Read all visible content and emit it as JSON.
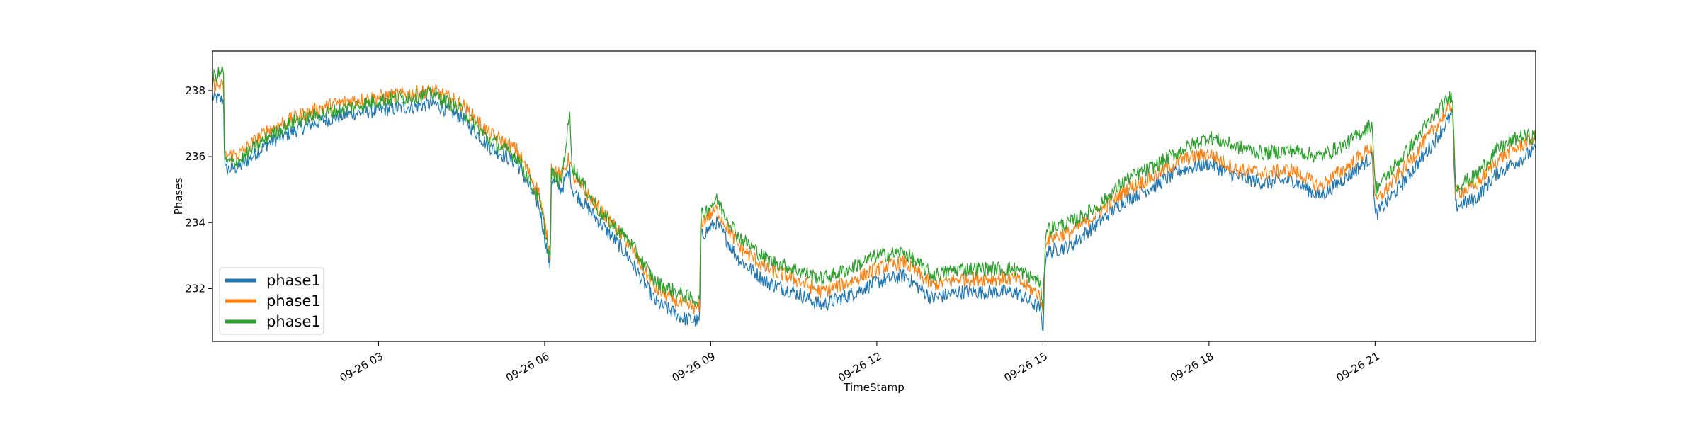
{
  "chart_data": {
    "type": "line",
    "title": "",
    "xlabel": "TimeStamp",
    "ylabel": "Phases",
    "x_unit": "hours since 09-26 00:00",
    "xlim": [
      0,
      23.9
    ],
    "ylim": [
      230.4,
      239.2
    ],
    "x_ticks": [
      {
        "value": 3,
        "label": "09-26 03"
      },
      {
        "value": 6,
        "label": "09-26 06"
      },
      {
        "value": 9,
        "label": "09-26 09"
      },
      {
        "value": 12,
        "label": "09-26 12"
      },
      {
        "value": 15,
        "label": "09-26 15"
      },
      {
        "value": 18,
        "label": "09-26 18"
      },
      {
        "value": 21,
        "label": "09-26 21"
      }
    ],
    "y_ticks": [
      232,
      234,
      236,
      238
    ],
    "grid": false,
    "legend": {
      "placement": "lower-left"
    },
    "series": [
      {
        "name": "phase1",
        "color": "#1f77b4",
        "x": [
          0,
          0.2,
          0.22,
          0.5,
          1,
          1.5,
          2,
          2.5,
          3,
          3.5,
          4,
          4.5,
          5,
          5.5,
          5.9,
          6.1,
          6.12,
          6.3,
          6.45,
          6.5,
          7,
          7.5,
          8,
          8.5,
          8.8,
          8.82,
          9.1,
          9.5,
          10,
          10.5,
          11,
          11.5,
          12,
          12.5,
          13,
          13.5,
          14,
          14.5,
          14.95,
          15.0,
          15.05,
          15.5,
          16,
          16.5,
          17,
          17.5,
          18,
          18.5,
          19,
          19.5,
          20,
          20.5,
          20.95,
          21.0,
          21.5,
          22,
          22.4,
          22.45,
          22.8,
          23.2,
          23.6,
          23.9
        ],
        "y": [
          237.8,
          237.7,
          235.6,
          235.7,
          236.4,
          236.8,
          237.1,
          237.3,
          237.4,
          237.5,
          237.6,
          237.2,
          236.3,
          235.8,
          234.5,
          232.6,
          235.3,
          235.0,
          235.6,
          235.0,
          234.0,
          233.0,
          231.6,
          231.1,
          231.0,
          233.6,
          234.0,
          232.9,
          232.2,
          231.9,
          231.5,
          231.8,
          232.2,
          232.4,
          231.7,
          231.9,
          231.9,
          231.9,
          231.4,
          230.7,
          233.1,
          233.3,
          234.0,
          234.7,
          235.1,
          235.6,
          235.8,
          235.4,
          235.2,
          235.3,
          234.8,
          235.4,
          236.0,
          234.2,
          235.2,
          236.3,
          237.3,
          234.5,
          234.7,
          235.5,
          235.9,
          236.2
        ]
      },
      {
        "name": "phase1",
        "color": "#ff7f0e",
        "x": [
          0,
          0.2,
          0.22,
          0.5,
          1,
          1.5,
          2,
          2.5,
          3,
          3.5,
          4,
          4.5,
          5,
          5.5,
          5.9,
          6.1,
          6.12,
          6.3,
          6.45,
          6.5,
          7,
          7.5,
          8,
          8.5,
          8.8,
          8.82,
          9.1,
          9.5,
          10,
          10.5,
          11,
          11.5,
          12,
          12.5,
          13,
          13.5,
          14,
          14.5,
          14.95,
          15.0,
          15.05,
          15.5,
          16,
          16.5,
          17,
          17.5,
          18,
          18.5,
          19,
          19.5,
          20,
          20.5,
          20.95,
          21.0,
          21.5,
          22,
          22.4,
          22.45,
          22.8,
          23.2,
          23.6,
          23.9
        ],
        "y": [
          238.2,
          238.1,
          236.0,
          236.1,
          236.8,
          237.2,
          237.5,
          237.7,
          237.8,
          237.9,
          238.0,
          237.6,
          236.7,
          236.2,
          234.9,
          233.0,
          235.7,
          235.4,
          236.0,
          235.4,
          234.4,
          233.4,
          232.0,
          231.5,
          231.4,
          234.0,
          234.4,
          233.3,
          232.6,
          232.3,
          231.9,
          232.2,
          232.6,
          232.8,
          232.1,
          232.3,
          232.3,
          232.3,
          231.8,
          231.1,
          233.5,
          233.7,
          234.3,
          235.0,
          235.4,
          235.9,
          236.1,
          235.6,
          235.5,
          235.6,
          235.1,
          235.7,
          236.3,
          234.6,
          235.6,
          236.7,
          237.6,
          234.9,
          235.1,
          235.9,
          236.3,
          236.6
        ]
      },
      {
        "name": "phase1",
        "color": "#2ca02c",
        "x": [
          0,
          0.2,
          0.22,
          0.5,
          1,
          1.5,
          2,
          2.5,
          3,
          3.5,
          4,
          4.5,
          5,
          5.5,
          5.9,
          6.1,
          6.12,
          6.3,
          6.45,
          6.5,
          7,
          7.5,
          8,
          8.5,
          8.8,
          8.82,
          9.1,
          9.5,
          10,
          10.5,
          11,
          11.5,
          12,
          12.5,
          13,
          13.5,
          14,
          14.5,
          14.95,
          15.0,
          15.05,
          15.5,
          16,
          16.5,
          17,
          17.5,
          18,
          18.5,
          19,
          19.5,
          20,
          20.5,
          20.95,
          21.0,
          21.5,
          22,
          22.4,
          22.45,
          22.8,
          23.2,
          23.6,
          23.9
        ],
        "y": [
          238.4,
          238.6,
          235.8,
          235.9,
          236.6,
          237.1,
          237.3,
          237.5,
          237.7,
          237.8,
          237.9,
          237.4,
          236.5,
          236.0,
          234.7,
          232.9,
          235.5,
          235.2,
          237.3,
          235.7,
          234.3,
          233.5,
          232.2,
          231.8,
          231.6,
          234.2,
          234.7,
          233.6,
          232.9,
          232.6,
          232.3,
          232.6,
          233.0,
          233.1,
          232.4,
          232.6,
          232.6,
          232.6,
          232.2,
          231.2,
          233.8,
          234.0,
          234.5,
          235.3,
          235.7,
          236.2,
          236.6,
          236.3,
          236.1,
          236.2,
          236.0,
          236.4,
          237.0,
          235.0,
          236.0,
          237.1,
          237.9,
          235.1,
          235.4,
          236.2,
          236.6,
          236.6
        ]
      }
    ]
  }
}
